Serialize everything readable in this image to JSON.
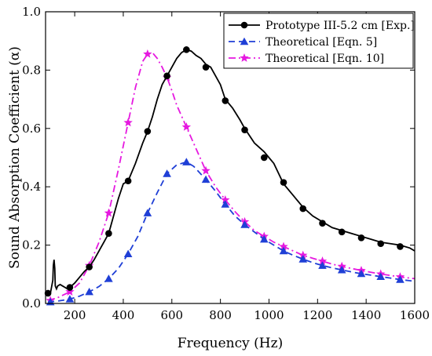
{
  "chart_data": {
    "type": "line",
    "xlabel": "Frequency (Hz)",
    "ylabel": "Sound Absorption Coefficient (α)",
    "xlim": [
      80,
      1600
    ],
    "ylim": [
      0.0,
      1.0
    ],
    "xticks": [
      200,
      400,
      600,
      800,
      1000,
      1200,
      1400,
      1600
    ],
    "yticks": [
      0.0,
      0.2,
      0.4,
      0.6,
      0.8,
      1.0
    ],
    "grid": false,
    "legend_position": "top-right",
    "series": [
      {
        "name": "Prototype III-5.2 cm [Exp.]",
        "color": "#000000",
        "dash": "solid",
        "marker": "circle",
        "x": [
          90,
          100,
          110,
          112,
          115,
          118,
          120,
          125,
          130,
          140,
          150,
          160,
          170,
          180,
          200,
          220,
          240,
          260,
          280,
          300,
          320,
          340,
          360,
          380,
          400,
          420,
          450,
          480,
          500,
          520,
          540,
          560,
          580,
          600,
          620,
          640,
          660,
          680,
          700,
          720,
          740,
          760,
          780,
          800,
          820,
          850,
          880,
          900,
          940,
          980,
          1000,
          1020,
          1060,
          1100,
          1140,
          1180,
          1220,
          1260,
          1300,
          1340,
          1380,
          1420,
          1460,
          1500,
          1540,
          1580,
          1600
        ],
        "y": [
          0.03,
          0.035,
          0.08,
          0.13,
          0.15,
          0.12,
          0.06,
          0.05,
          0.06,
          0.065,
          0.06,
          0.055,
          0.05,
          0.055,
          0.07,
          0.09,
          0.11,
          0.125,
          0.15,
          0.18,
          0.21,
          0.24,
          0.3,
          0.36,
          0.41,
          0.42,
          0.48,
          0.55,
          0.59,
          0.64,
          0.7,
          0.75,
          0.78,
          0.81,
          0.84,
          0.86,
          0.87,
          0.865,
          0.85,
          0.84,
          0.82,
          0.81,
          0.78,
          0.75,
          0.7,
          0.67,
          0.63,
          0.6,
          0.55,
          0.52,
          0.5,
          0.48,
          0.41,
          0.37,
          0.33,
          0.3,
          0.28,
          0.26,
          0.25,
          0.24,
          0.23,
          0.22,
          0.21,
          0.205,
          0.2,
          0.19,
          0.18
        ],
        "markers_x": [
          90,
          180,
          260,
          340,
          420,
          500,
          580,
          660,
          740,
          820,
          900,
          980,
          1060,
          1140,
          1220,
          1300,
          1380,
          1460,
          1540
        ],
        "markers_y": [
          0.035,
          0.055,
          0.125,
          0.24,
          0.42,
          0.59,
          0.78,
          0.87,
          0.81,
          0.695,
          0.595,
          0.5,
          0.415,
          0.325,
          0.275,
          0.245,
          0.225,
          0.205,
          0.195
        ]
      },
      {
        "name": "Theoretical [Eqn. 5]",
        "color": "#1f3fd6",
        "dash": "dashed",
        "marker": "triangle",
        "x": [
          90,
          130,
          180,
          220,
          260,
          300,
          340,
          380,
          420,
          460,
          500,
          540,
          580,
          620,
          660,
          690,
          740,
          780,
          820,
          860,
          900,
          940,
          980,
          1020,
          1060,
          1100,
          1140,
          1180,
          1220,
          1260,
          1300,
          1340,
          1380,
          1420,
          1460,
          1500,
          1540,
          1580,
          1600
        ],
        "y": [
          0.005,
          0.008,
          0.015,
          0.025,
          0.04,
          0.058,
          0.085,
          0.12,
          0.17,
          0.23,
          0.31,
          0.38,
          0.445,
          0.475,
          0.485,
          0.47,
          0.425,
          0.385,
          0.34,
          0.3,
          0.27,
          0.245,
          0.22,
          0.2,
          0.18,
          0.165,
          0.152,
          0.14,
          0.13,
          0.122,
          0.115,
          0.108,
          0.102,
          0.097,
          0.092,
          0.087,
          0.082,
          0.078,
          0.076
        ],
        "markers_x": [
          100,
          180,
          260,
          340,
          420,
          500,
          580,
          660,
          740,
          820,
          900,
          980,
          1060,
          1140,
          1220,
          1300,
          1380,
          1460,
          1540
        ],
        "markers_y": [
          0.005,
          0.015,
          0.04,
          0.085,
          0.17,
          0.31,
          0.445,
          0.485,
          0.425,
          0.34,
          0.27,
          0.22,
          0.18,
          0.152,
          0.13,
          0.115,
          0.102,
          0.092,
          0.082
        ]
      },
      {
        "name": "Theoretical [Eqn. 10]",
        "color": "#e619e0",
        "dash": "dashdot",
        "marker": "star",
        "x": [
          90,
          130,
          180,
          220,
          260,
          300,
          340,
          380,
          420,
          450,
          480,
          500,
          520,
          540,
          560,
          580,
          600,
          620,
          660,
          700,
          740,
          780,
          820,
          860,
          900,
          940,
          980,
          1020,
          1060,
          1100,
          1140,
          1180,
          1220,
          1260,
          1300,
          1340,
          1380,
          1420,
          1460,
          1500,
          1540,
          1580,
          1600
        ],
        "y": [
          0.01,
          0.02,
          0.04,
          0.07,
          0.13,
          0.21,
          0.31,
          0.46,
          0.62,
          0.74,
          0.83,
          0.855,
          0.86,
          0.84,
          0.81,
          0.775,
          0.73,
          0.68,
          0.605,
          0.53,
          0.455,
          0.4,
          0.355,
          0.315,
          0.28,
          0.25,
          0.23,
          0.21,
          0.195,
          0.18,
          0.165,
          0.155,
          0.145,
          0.135,
          0.127,
          0.12,
          0.113,
          0.107,
          0.101,
          0.096,
          0.091,
          0.087,
          0.085
        ],
        "markers_x": [
          100,
          180,
          260,
          340,
          420,
          500,
          580,
          660,
          740,
          820,
          900,
          980,
          1060,
          1140,
          1220,
          1300,
          1380,
          1460,
          1540
        ],
        "markers_y": [
          0.01,
          0.04,
          0.13,
          0.31,
          0.62,
          0.855,
          0.775,
          0.605,
          0.455,
          0.355,
          0.28,
          0.23,
          0.195,
          0.165,
          0.145,
          0.127,
          0.113,
          0.101,
          0.091
        ]
      }
    ]
  }
}
